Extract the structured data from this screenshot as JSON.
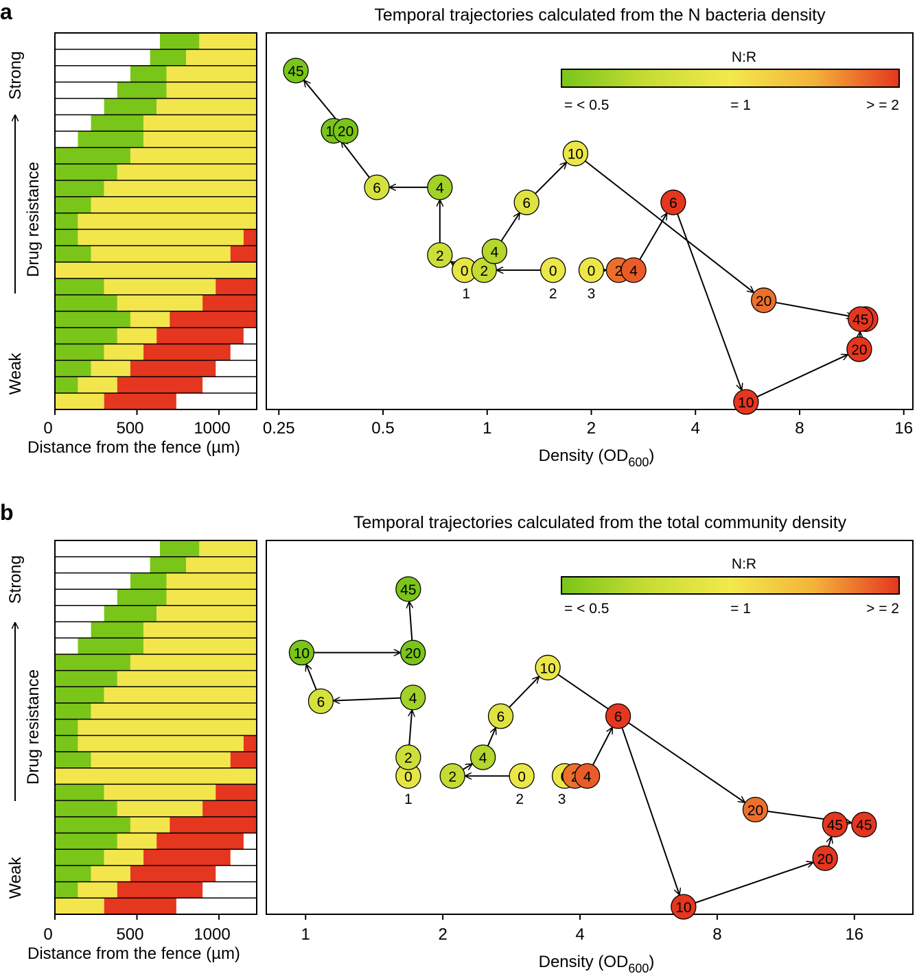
{
  "colors": {
    "green": "#7ac519",
    "yellow": "#f2e64c",
    "red": "#e5361f",
    "white": "#ffffff",
    "colorbar_stops": [
      "#7ac519",
      "#c6dc34",
      "#f3e94c",
      "#f3b23a",
      "#e5361f"
    ]
  },
  "strip_rows": [
    {
      "g": [
        640,
        880
      ],
      "y": [
        880,
        1230
      ],
      "r": null
    },
    {
      "g": [
        580,
        800
      ],
      "y": [
        800,
        1230
      ],
      "r": null
    },
    {
      "g": [
        460,
        680
      ],
      "y": [
        680,
        1230
      ],
      "r": null
    },
    {
      "g": [
        380,
        680
      ],
      "y": [
        680,
        1230
      ],
      "r": null
    },
    {
      "g": [
        300,
        620
      ],
      "y": [
        620,
        1230
      ],
      "r": null
    },
    {
      "g": [
        220,
        540
      ],
      "y": [
        540,
        1230
      ],
      "r": null
    },
    {
      "g": [
        140,
        540
      ],
      "y": [
        540,
        1230
      ],
      "r": null
    },
    {
      "g": [
        0,
        460
      ],
      "y": [
        460,
        1230
      ],
      "r": null
    },
    {
      "g": [
        0,
        380
      ],
      "y": [
        380,
        1230
      ],
      "r": null
    },
    {
      "g": [
        0,
        300
      ],
      "y": [
        300,
        1230
      ],
      "r": null
    },
    {
      "g": [
        0,
        220
      ],
      "y": [
        220,
        1230
      ],
      "r": null
    },
    {
      "g": [
        0,
        140
      ],
      "y": [
        140,
        1230
      ],
      "r": null
    },
    {
      "g": [
        0,
        140
      ],
      "y": [
        140,
        1150
      ],
      "r": [
        1150,
        1230
      ]
    },
    {
      "g": [
        0,
        220
      ],
      "y": [
        220,
        1070
      ],
      "r": [
        1070,
        1230
      ]
    },
    {
      "g": null,
      "y": [
        0,
        1230
      ],
      "r": null
    },
    {
      "g": [
        0,
        300
      ],
      "y": [
        300,
        980
      ],
      "r": [
        980,
        1230
      ]
    },
    {
      "g": [
        0,
        380
      ],
      "y": [
        380,
        900
      ],
      "r": [
        900,
        1230
      ]
    },
    {
      "g": [
        0,
        460
      ],
      "y": [
        460,
        700
      ],
      "r": [
        700,
        1230
      ]
    },
    {
      "g": [
        0,
        380
      ],
      "y": [
        380,
        620
      ],
      "r": [
        620,
        1150
      ]
    },
    {
      "g": [
        0,
        300
      ],
      "y": [
        300,
        540
      ],
      "r": [
        540,
        1070
      ]
    },
    {
      "g": [
        0,
        220
      ],
      "y": [
        220,
        460
      ],
      "r": [
        460,
        980
      ]
    },
    {
      "g": [
        0,
        140
      ],
      "y": [
        140,
        380
      ],
      "r": [
        380,
        900
      ]
    },
    {
      "g": null,
      "y": [
        0,
        300
      ],
      "r": [
        300,
        740
      ]
    }
  ],
  "panels": [
    {
      "letter": "a",
      "title": "Temporal trajectories calculated from the N bacteria density",
      "strip": {
        "y_axis_label": "Drug resistance",
        "strong_label": "Strong",
        "weak_label": "Weak",
        "x_label": "Distance from the fence (µm)",
        "x_ticks": [
          {
            "value": 0,
            "label": "0"
          },
          {
            "value": 500,
            "label": "500"
          },
          {
            "value": 1000,
            "label": "1000"
          }
        ],
        "x_range": [
          0,
          1230
        ]
      },
      "chart_data": {
        "type": "scatter",
        "title": "Temporal trajectories calculated from the N bacteria density",
        "xlabel_main": "Density (OD",
        "xlabel_sub": "600",
        "xlabel_end": ")",
        "x_scale": "log2",
        "x_range": [
          0.23,
          17
        ],
        "x_ticks": [
          {
            "value": 0.25,
            "label": "0.25"
          },
          {
            "value": 0.5,
            "label": "0.5"
          },
          {
            "value": 1,
            "label": "1"
          },
          {
            "value": 2,
            "label": "2"
          },
          {
            "value": 4,
            "label": "4"
          },
          {
            "value": 8,
            "label": "8"
          },
          {
            "value": 16,
            "label": "16"
          }
        ],
        "y_range": [
          0,
          1
        ],
        "colorbar": {
          "title": "N:R",
          "low_label": "= < 0.5",
          "mid_label": "= 1",
          "high_label": "> = 2"
        },
        "trajectory_labels": [
          {
            "label": "1",
            "x": 0.87,
            "y": 0.31
          },
          {
            "label": "2",
            "x": 1.55,
            "y": 0.31
          },
          {
            "label": "3",
            "x": 2.0,
            "y": 0.31
          }
        ],
        "trajectories": [
          {
            "name": "1",
            "points": [
              {
                "t": "0",
                "x": 0.86,
                "y": 0.37,
                "nr": 0.9
              },
              {
                "t": "2",
                "x": 0.73,
                "y": 0.41,
                "nr": 0.75
              },
              {
                "t": "4",
                "x": 0.73,
                "y": 0.59,
                "nr": 0.6
              },
              {
                "t": "6",
                "x": 0.48,
                "y": 0.59,
                "nr": 0.8
              },
              {
                "t": "10",
                "x": 0.36,
                "y": 0.74,
                "nr": 0.5
              },
              {
                "t": "20",
                "x": 0.39,
                "y": 0.74,
                "nr": 0.5
              },
              {
                "t": "45",
                "x": 0.28,
                "y": 0.9,
                "nr": 0.5
              }
            ],
            "arrows": [
              [
                0,
                1
              ],
              [
                1,
                2
              ],
              [
                2,
                3
              ],
              [
                3,
                4
              ],
              [
                5,
                6
              ]
            ]
          },
          {
            "name": "2",
            "points": [
              {
                "t": "0",
                "x": 1.55,
                "y": 0.37,
                "nr": 0.95
              },
              {
                "t": "2",
                "x": 0.98,
                "y": 0.37,
                "nr": 0.7
              },
              {
                "t": "4",
                "x": 1.05,
                "y": 0.42,
                "nr": 0.65
              },
              {
                "t": "6",
                "x": 1.3,
                "y": 0.55,
                "nr": 0.85
              },
              {
                "t": "10",
                "x": 1.8,
                "y": 0.68,
                "nr": 0.95
              },
              {
                "t": "20",
                "x": 6.3,
                "y": 0.29,
                "nr": 1.7
              },
              {
                "t": "45",
                "x": 12.4,
                "y": 0.24,
                "nr": 2.1
              }
            ],
            "arrows": [
              [
                0,
                1
              ],
              [
                2,
                3
              ],
              [
                3,
                4
              ],
              [
                4,
                5
              ],
              [
                5,
                6
              ]
            ]
          },
          {
            "name": "3",
            "points": [
              {
                "t": "0",
                "x": 2.0,
                "y": 0.37,
                "nr": 0.95
              },
              {
                "t": "2",
                "x": 2.4,
                "y": 0.37,
                "nr": 1.7
              },
              {
                "t": "4",
                "x": 2.65,
                "y": 0.37,
                "nr": 1.8
              },
              {
                "t": "6",
                "x": 3.45,
                "y": 0.55,
                "nr": 2.2
              },
              {
                "t": "10",
                "x": 5.6,
                "y": 0.02,
                "nr": 2.2
              },
              {
                "t": "20",
                "x": 11.9,
                "y": 0.16,
                "nr": 2.2
              },
              {
                "t": "45",
                "x": 12.0,
                "y": 0.24,
                "nr": 2.2
              }
            ],
            "arrows": [
              [
                0,
                1
              ],
              [
                2,
                3
              ],
              [
                3,
                4
              ],
              [
                4,
                5
              ],
              [
                5,
                6
              ]
            ]
          }
        ]
      }
    },
    {
      "letter": "b",
      "title": "Temporal trajectories calculated from the  total community density",
      "strip": {
        "y_axis_label": "Drug resistance",
        "strong_label": "Strong",
        "weak_label": "Weak",
        "x_label": "Distance from the fence (µm)",
        "x_ticks": [
          {
            "value": 0,
            "label": "0"
          },
          {
            "value": 500,
            "label": "500"
          },
          {
            "value": 1000,
            "label": "1000"
          }
        ],
        "x_range": [
          0,
          1230
        ]
      },
      "chart_data": {
        "type": "scatter",
        "title": "Temporal trajectories calculated from the  total community density",
        "xlabel_main": "Density (OD",
        "xlabel_sub": "600",
        "xlabel_end": ")",
        "x_scale": "log2",
        "x_range": [
          0.82,
          21.5
        ],
        "x_ticks": [
          {
            "value": 1,
            "label": "1"
          },
          {
            "value": 2,
            "label": "2"
          },
          {
            "value": 4,
            "label": "4"
          },
          {
            "value": 8,
            "label": "8"
          },
          {
            "value": 16,
            "label": "16"
          }
        ],
        "y_range": [
          0,
          1
        ],
        "colorbar": {
          "title": "N:R",
          "low_label": "= < 0.5",
          "mid_label": "= 1",
          "high_label": "> = 2"
        },
        "trajectory_labels": [
          {
            "label": "1",
            "x": 1.68,
            "y": 0.31
          },
          {
            "label": "2",
            "x": 2.95,
            "y": 0.31
          },
          {
            "label": "3",
            "x": 3.65,
            "y": 0.31
          }
        ],
        "trajectories": [
          {
            "name": "1",
            "points": [
              {
                "t": "0",
                "x": 1.68,
                "y": 0.37,
                "nr": 0.9
              },
              {
                "t": "2",
                "x": 1.68,
                "y": 0.42,
                "nr": 0.75
              },
              {
                "t": "4",
                "x": 1.72,
                "y": 0.58,
                "nr": 0.6
              },
              {
                "t": "6",
                "x": 1.08,
                "y": 0.57,
                "nr": 0.8
              },
              {
                "t": "10",
                "x": 0.98,
                "y": 0.7,
                "nr": 0.5
              },
              {
                "t": "20",
                "x": 1.72,
                "y": 0.7,
                "nr": 0.5
              },
              {
                "t": "45",
                "x": 1.68,
                "y": 0.87,
                "nr": 0.5
              }
            ],
            "arrows": [
              [
                1,
                2
              ],
              [
                2,
                3
              ],
              [
                3,
                4
              ],
              [
                4,
                5
              ],
              [
                5,
                6
              ]
            ]
          },
          {
            "name": "2",
            "points": [
              {
                "t": "0",
                "x": 2.98,
                "y": 0.37,
                "nr": 0.95
              },
              {
                "t": "2",
                "x": 2.1,
                "y": 0.37,
                "nr": 0.7
              },
              {
                "t": "4",
                "x": 2.45,
                "y": 0.42,
                "nr": 0.65
              },
              {
                "t": "6",
                "x": 2.68,
                "y": 0.53,
                "nr": 0.85
              },
              {
                "t": "10",
                "x": 3.4,
                "y": 0.66,
                "nr": 0.95
              },
              {
                "t": "20",
                "x": 9.7,
                "y": 0.28,
                "nr": 1.7
              },
              {
                "t": "45",
                "x": 16.8,
                "y": 0.24,
                "nr": 2.1
              }
            ],
            "arrows": [
              [
                0,
                1
              ],
              [
                1,
                2
              ],
              [
                2,
                3
              ],
              [
                3,
                4
              ],
              [
                4,
                5
              ],
              [
                5,
                6
              ]
            ]
          },
          {
            "name": "3",
            "points": [
              {
                "t": "0",
                "x": 3.7,
                "y": 0.37,
                "nr": 0.95
              },
              {
                "t": "2",
                "x": 3.9,
                "y": 0.37,
                "nr": 1.7
              },
              {
                "t": "4",
                "x": 4.15,
                "y": 0.37,
                "nr": 1.8
              },
              {
                "t": "6",
                "x": 4.85,
                "y": 0.53,
                "nr": 2.2
              },
              {
                "t": "10",
                "x": 6.75,
                "y": 0.02,
                "nr": 2.2
              },
              {
                "t": "20",
                "x": 13.8,
                "y": 0.15,
                "nr": 2.2
              },
              {
                "t": "45",
                "x": 14.5,
                "y": 0.24,
                "nr": 2.2
              }
            ],
            "arrows": [
              [
                2,
                3
              ],
              [
                3,
                4
              ],
              [
                4,
                5
              ],
              [
                5,
                6
              ]
            ]
          }
        ]
      }
    }
  ]
}
